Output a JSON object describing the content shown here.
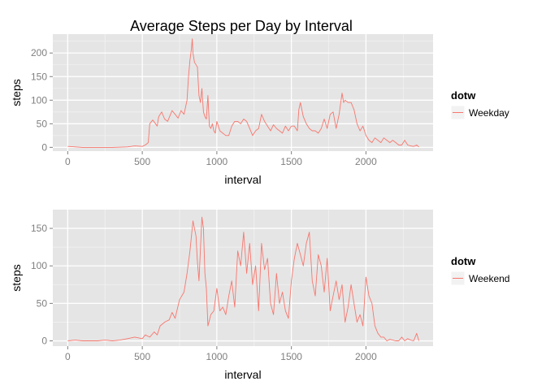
{
  "page_title": "Average Steps per Day by Interval",
  "colors": {
    "panel_bg": "#e5e5e5",
    "grid_major": "#ffffff",
    "grid_minor": "#f2f2f2",
    "series": "#f8766d",
    "legend_key_bg": "#f2f2f2"
  },
  "chart_data": [
    {
      "type": "line",
      "title": "Average Steps per Day by Interval",
      "xlabel": "interval",
      "ylabel": "steps",
      "xlim": [
        -100,
        2450
      ],
      "ylim": [
        -8,
        240
      ],
      "xticks": [
        0,
        500,
        1000,
        1500,
        2000
      ],
      "yticks": [
        0,
        50,
        100,
        150,
        200
      ],
      "grid": true,
      "legend": {
        "title": "dotw",
        "entries": [
          "Weekday"
        ],
        "placement": "right"
      },
      "series": [
        {
          "name": "Weekday",
          "x": [
            0,
            100,
            200,
            300,
            400,
            450,
            500,
            520,
            540,
            550,
            570,
            600,
            610,
            630,
            650,
            670,
            700,
            720,
            740,
            760,
            780,
            800,
            810,
            820,
            830,
            835,
            840,
            850,
            860,
            870,
            880,
            890,
            900,
            910,
            920,
            930,
            940,
            950,
            960,
            970,
            980,
            990,
            1000,
            1020,
            1040,
            1060,
            1080,
            1100,
            1120,
            1140,
            1160,
            1180,
            1200,
            1220,
            1240,
            1260,
            1280,
            1300,
            1320,
            1340,
            1360,
            1380,
            1400,
            1420,
            1440,
            1460,
            1480,
            1500,
            1520,
            1540,
            1550,
            1560,
            1580,
            1600,
            1620,
            1640,
            1660,
            1680,
            1700,
            1720,
            1740,
            1760,
            1780,
            1800,
            1820,
            1840,
            1850,
            1860,
            1880,
            1900,
            1920,
            1940,
            1960,
            1980,
            2000,
            2020,
            2040,
            2060,
            2080,
            2100,
            2120,
            2140,
            2160,
            2180,
            2200,
            2220,
            2240,
            2260,
            2280,
            2300,
            2320,
            2340,
            2355
          ],
          "values": [
            2,
            0,
            0,
            0,
            1,
            3,
            2,
            5,
            10,
            50,
            58,
            45,
            65,
            75,
            60,
            55,
            78,
            70,
            62,
            78,
            70,
            100,
            150,
            185,
            210,
            230,
            200,
            180,
            175,
            170,
            110,
            95,
            125,
            75,
            65,
            60,
            110,
            45,
            40,
            50,
            35,
            30,
            55,
            35,
            30,
            25,
            25,
            45,
            55,
            55,
            50,
            60,
            55,
            40,
            25,
            35,
            40,
            70,
            55,
            45,
            35,
            48,
            40,
            35,
            30,
            45,
            35,
            45,
            45,
            35,
            80,
            95,
            65,
            50,
            40,
            35,
            35,
            30,
            40,
            60,
            40,
            70,
            75,
            40,
            70,
            115,
            95,
            100,
            95,
            95,
            80,
            50,
            35,
            45,
            25,
            15,
            10,
            20,
            15,
            10,
            20,
            15,
            10,
            15,
            10,
            5,
            5,
            15,
            5,
            3,
            2,
            5,
            1
          ]
        }
      ]
    },
    {
      "type": "line",
      "title": "",
      "xlabel": "interval",
      "ylabel": "steps",
      "xlim": [
        -100,
        2450
      ],
      "ylim": [
        -7,
        175
      ],
      "xticks": [
        0,
        500,
        1000,
        1500,
        2000
      ],
      "yticks": [
        0,
        50,
        100,
        150
      ],
      "grid": true,
      "legend": {
        "title": "dotw",
        "entries": [
          "Weekend"
        ],
        "placement": "right"
      },
      "series": [
        {
          "name": "Weekend",
          "x": [
            0,
            50,
            100,
            150,
            200,
            250,
            300,
            350,
            400,
            450,
            500,
            520,
            550,
            580,
            600,
            620,
            650,
            680,
            700,
            720,
            750,
            780,
            800,
            820,
            840,
            860,
            870,
            880,
            900,
            910,
            920,
            930,
            940,
            960,
            980,
            1000,
            1020,
            1040,
            1060,
            1080,
            1100,
            1120,
            1140,
            1160,
            1180,
            1200,
            1220,
            1240,
            1260,
            1280,
            1300,
            1320,
            1340,
            1360,
            1380,
            1400,
            1420,
            1440,
            1460,
            1480,
            1500,
            1520,
            1540,
            1560,
            1580,
            1600,
            1620,
            1640,
            1660,
            1680,
            1700,
            1720,
            1740,
            1760,
            1780,
            1800,
            1820,
            1840,
            1860,
            1880,
            1900,
            1920,
            1940,
            1960,
            1980,
            2000,
            2020,
            2040,
            2060,
            2080,
            2100,
            2120,
            2140,
            2160,
            2180,
            2200,
            2220,
            2240,
            2260,
            2280,
            2300,
            2320,
            2340,
            2355
          ],
          "values": [
            0,
            1,
            0,
            0,
            0,
            1,
            0,
            1,
            3,
            5,
            3,
            8,
            5,
            12,
            8,
            20,
            25,
            28,
            38,
            30,
            55,
            65,
            90,
            120,
            160,
            140,
            105,
            80,
            165,
            150,
            90,
            70,
            20,
            35,
            40,
            70,
            40,
            45,
            35,
            60,
            80,
            45,
            120,
            100,
            145,
            90,
            130,
            75,
            100,
            40,
            130,
            95,
            110,
            50,
            35,
            90,
            50,
            65,
            40,
            30,
            80,
            110,
            130,
            115,
            100,
            130,
            145,
            80,
            60,
            115,
            100,
            65,
            110,
            40,
            60,
            80,
            55,
            75,
            25,
            45,
            75,
            50,
            25,
            35,
            20,
            85,
            60,
            50,
            20,
            10,
            5,
            5,
            0,
            2,
            1,
            0,
            0,
            5,
            0,
            3,
            1,
            0,
            10,
            0
          ]
        }
      ]
    }
  ]
}
